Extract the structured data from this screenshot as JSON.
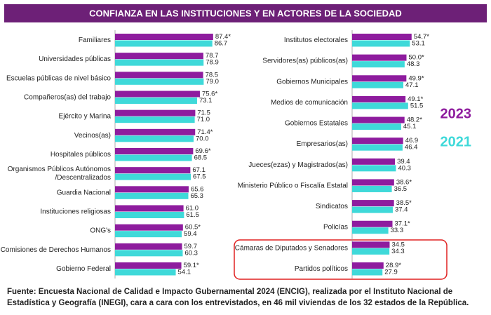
{
  "title": "CONFIANZA EN LAS INSTITUCIONES Y EN ACTORES DE LA SOCIEDAD",
  "source": "Fuente: Encuesta Nacional de Calidad e Impacto Gubernamental 2024 (ENCIG), realizada por el Instituto Nacional de Estadística y Geografía (INEGI), cara a cara con los entrevistados, en 46 mil viviendas de los 32 estados de la República.",
  "chart_data": [
    {
      "type": "bar",
      "categories": [
        "Familiares",
        "Universidades públicas",
        "Escuelas públicas de nivel básico",
        "Compañeros(as) del trabajo",
        "Ejército y Marina",
        "Vecinos(as)",
        "Hospitales públicos",
        "Organismos Públicos Autónomos\n/Descentralizados",
        "Guardia Nacional",
        "Instituciones religiosas",
        "ONG's",
        "Comisiones de Derechos Humanos",
        "Gobierno Federal"
      ],
      "series": [
        {
          "name": "2023",
          "color": "#8e1c9e",
          "values": [
            87.4,
            78.7,
            78.5,
            75.6,
            71.5,
            71.4,
            69.6,
            67.1,
            65.6,
            61.0,
            60.5,
            59.7,
            59.1
          ],
          "value_labels": [
            "87.4*",
            "78.7",
            "78.5",
            "75.6*",
            "71.5",
            "71.4*",
            "69.6*",
            "67.1",
            "65.6",
            "61.0",
            "60.5*",
            "59.7",
            "59.1*"
          ]
        },
        {
          "name": "2021",
          "color": "#3fd9d9",
          "values": [
            86.7,
            78.9,
            79.0,
            73.1,
            71.0,
            70.0,
            68.5,
            67.5,
            65.3,
            61.5,
            59.4,
            60.3,
            54.1
          ],
          "value_labels": [
            "86.7",
            "78.9",
            "79.0",
            "73.1",
            "71.0",
            "70.0",
            "68.5",
            "67.5",
            "65.3",
            "61.5",
            "59.4",
            "60.3",
            "54.1"
          ]
        }
      ]
    },
    {
      "type": "bar",
      "legend": "right",
      "categories": [
        "Institutos electorales",
        "Servidores(as) públicos(as)",
        "Gobiernos Municipales",
        "Medios de comunicación",
        "Gobiernos Estatales",
        "Empresarios(as)",
        "Jueces(ezas) y Magistrados(as)",
        "Ministerio Público o Fiscalía Estatal",
        "Sindicatos",
        "Policías",
        "Cámaras de Diputados y Senadores",
        "Partidos políticos"
      ],
      "series": [
        {
          "name": "2023",
          "color": "#8e1c9e",
          "values": [
            54.7,
            50.0,
            49.9,
            49.1,
            48.2,
            46.9,
            39.4,
            38.6,
            38.5,
            37.1,
            34.5,
            28.9
          ],
          "value_labels": [
            "54.7*",
            "50.0*",
            "49.9*",
            "49.1*",
            "48.2*",
            "46.9",
            "39.4",
            "38.6*",
            "38.5*",
            "37.1*",
            "34.5",
            "28.9*"
          ]
        },
        {
          "name": "2021",
          "color": "#3fd9d9",
          "values": [
            53.1,
            48.3,
            47.1,
            51.5,
            45.1,
            46.4,
            40.3,
            36.5,
            37.4,
            33.3,
            34.3,
            27.9
          ],
          "value_labels": [
            "53.1",
            "48.3",
            "47.1",
            "51.5",
            "45.1",
            "46.4",
            "40.3",
            "36.5",
            "37.4",
            "33.3",
            "34.3",
            "27.9"
          ]
        }
      ]
    }
  ]
}
